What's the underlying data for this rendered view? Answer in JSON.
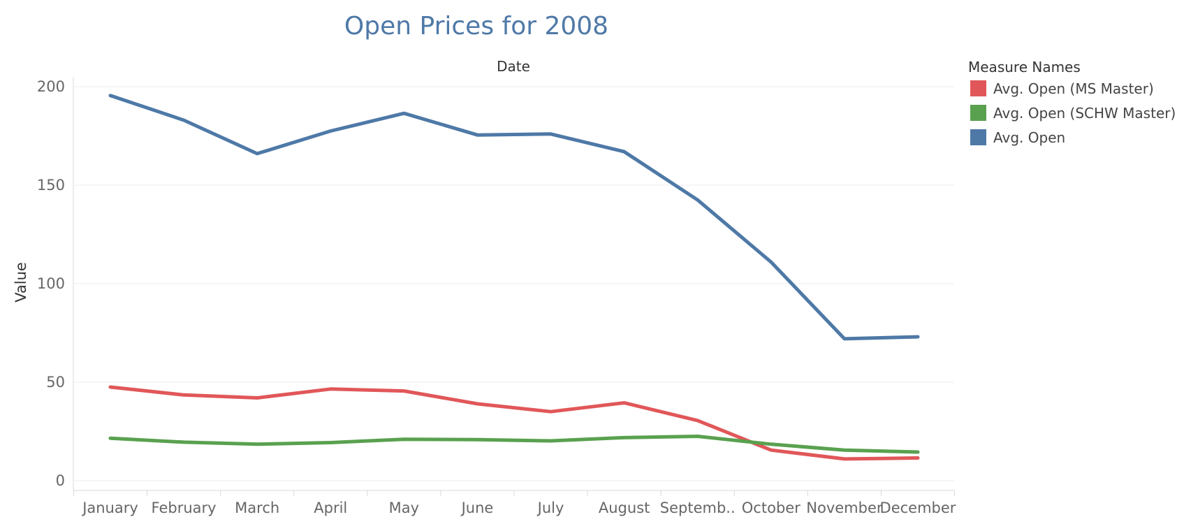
{
  "chart_data": {
    "type": "line",
    "title": "Open Prices for 2008",
    "column_header": "Date",
    "ylabel": "Value",
    "ylim": [
      -5,
      205
    ],
    "y_ticks": [
      0,
      50,
      100,
      150,
      200
    ],
    "categories": [
      "January",
      "February",
      "March",
      "April",
      "May",
      "June",
      "July",
      "August",
      "Septemb..",
      "October",
      "November",
      "December"
    ],
    "grid": true,
    "legend_position": "right",
    "legend_title": "Measure Names",
    "series": [
      {
        "name": "Avg. Open (MS Master)",
        "color": "#e15759",
        "values": [
          47.5,
          43.5,
          42,
          46.5,
          45.5,
          39,
          35,
          39.5,
          30.5,
          15.5,
          11,
          11.5
        ]
      },
      {
        "name": "Avg. Open (SCHW Master)",
        "color": "#59a14f",
        "values": [
          21.5,
          19.5,
          18.5,
          19.3,
          21,
          20.8,
          20.2,
          21.8,
          22.5,
          18.5,
          15.5,
          14.5
        ]
      },
      {
        "name": "Avg. Open",
        "color": "#4e79a7",
        "values": [
          195.5,
          183,
          166,
          177.5,
          186.5,
          175.5,
          176,
          167,
          142.5,
          111,
          72,
          73
        ]
      }
    ]
  }
}
